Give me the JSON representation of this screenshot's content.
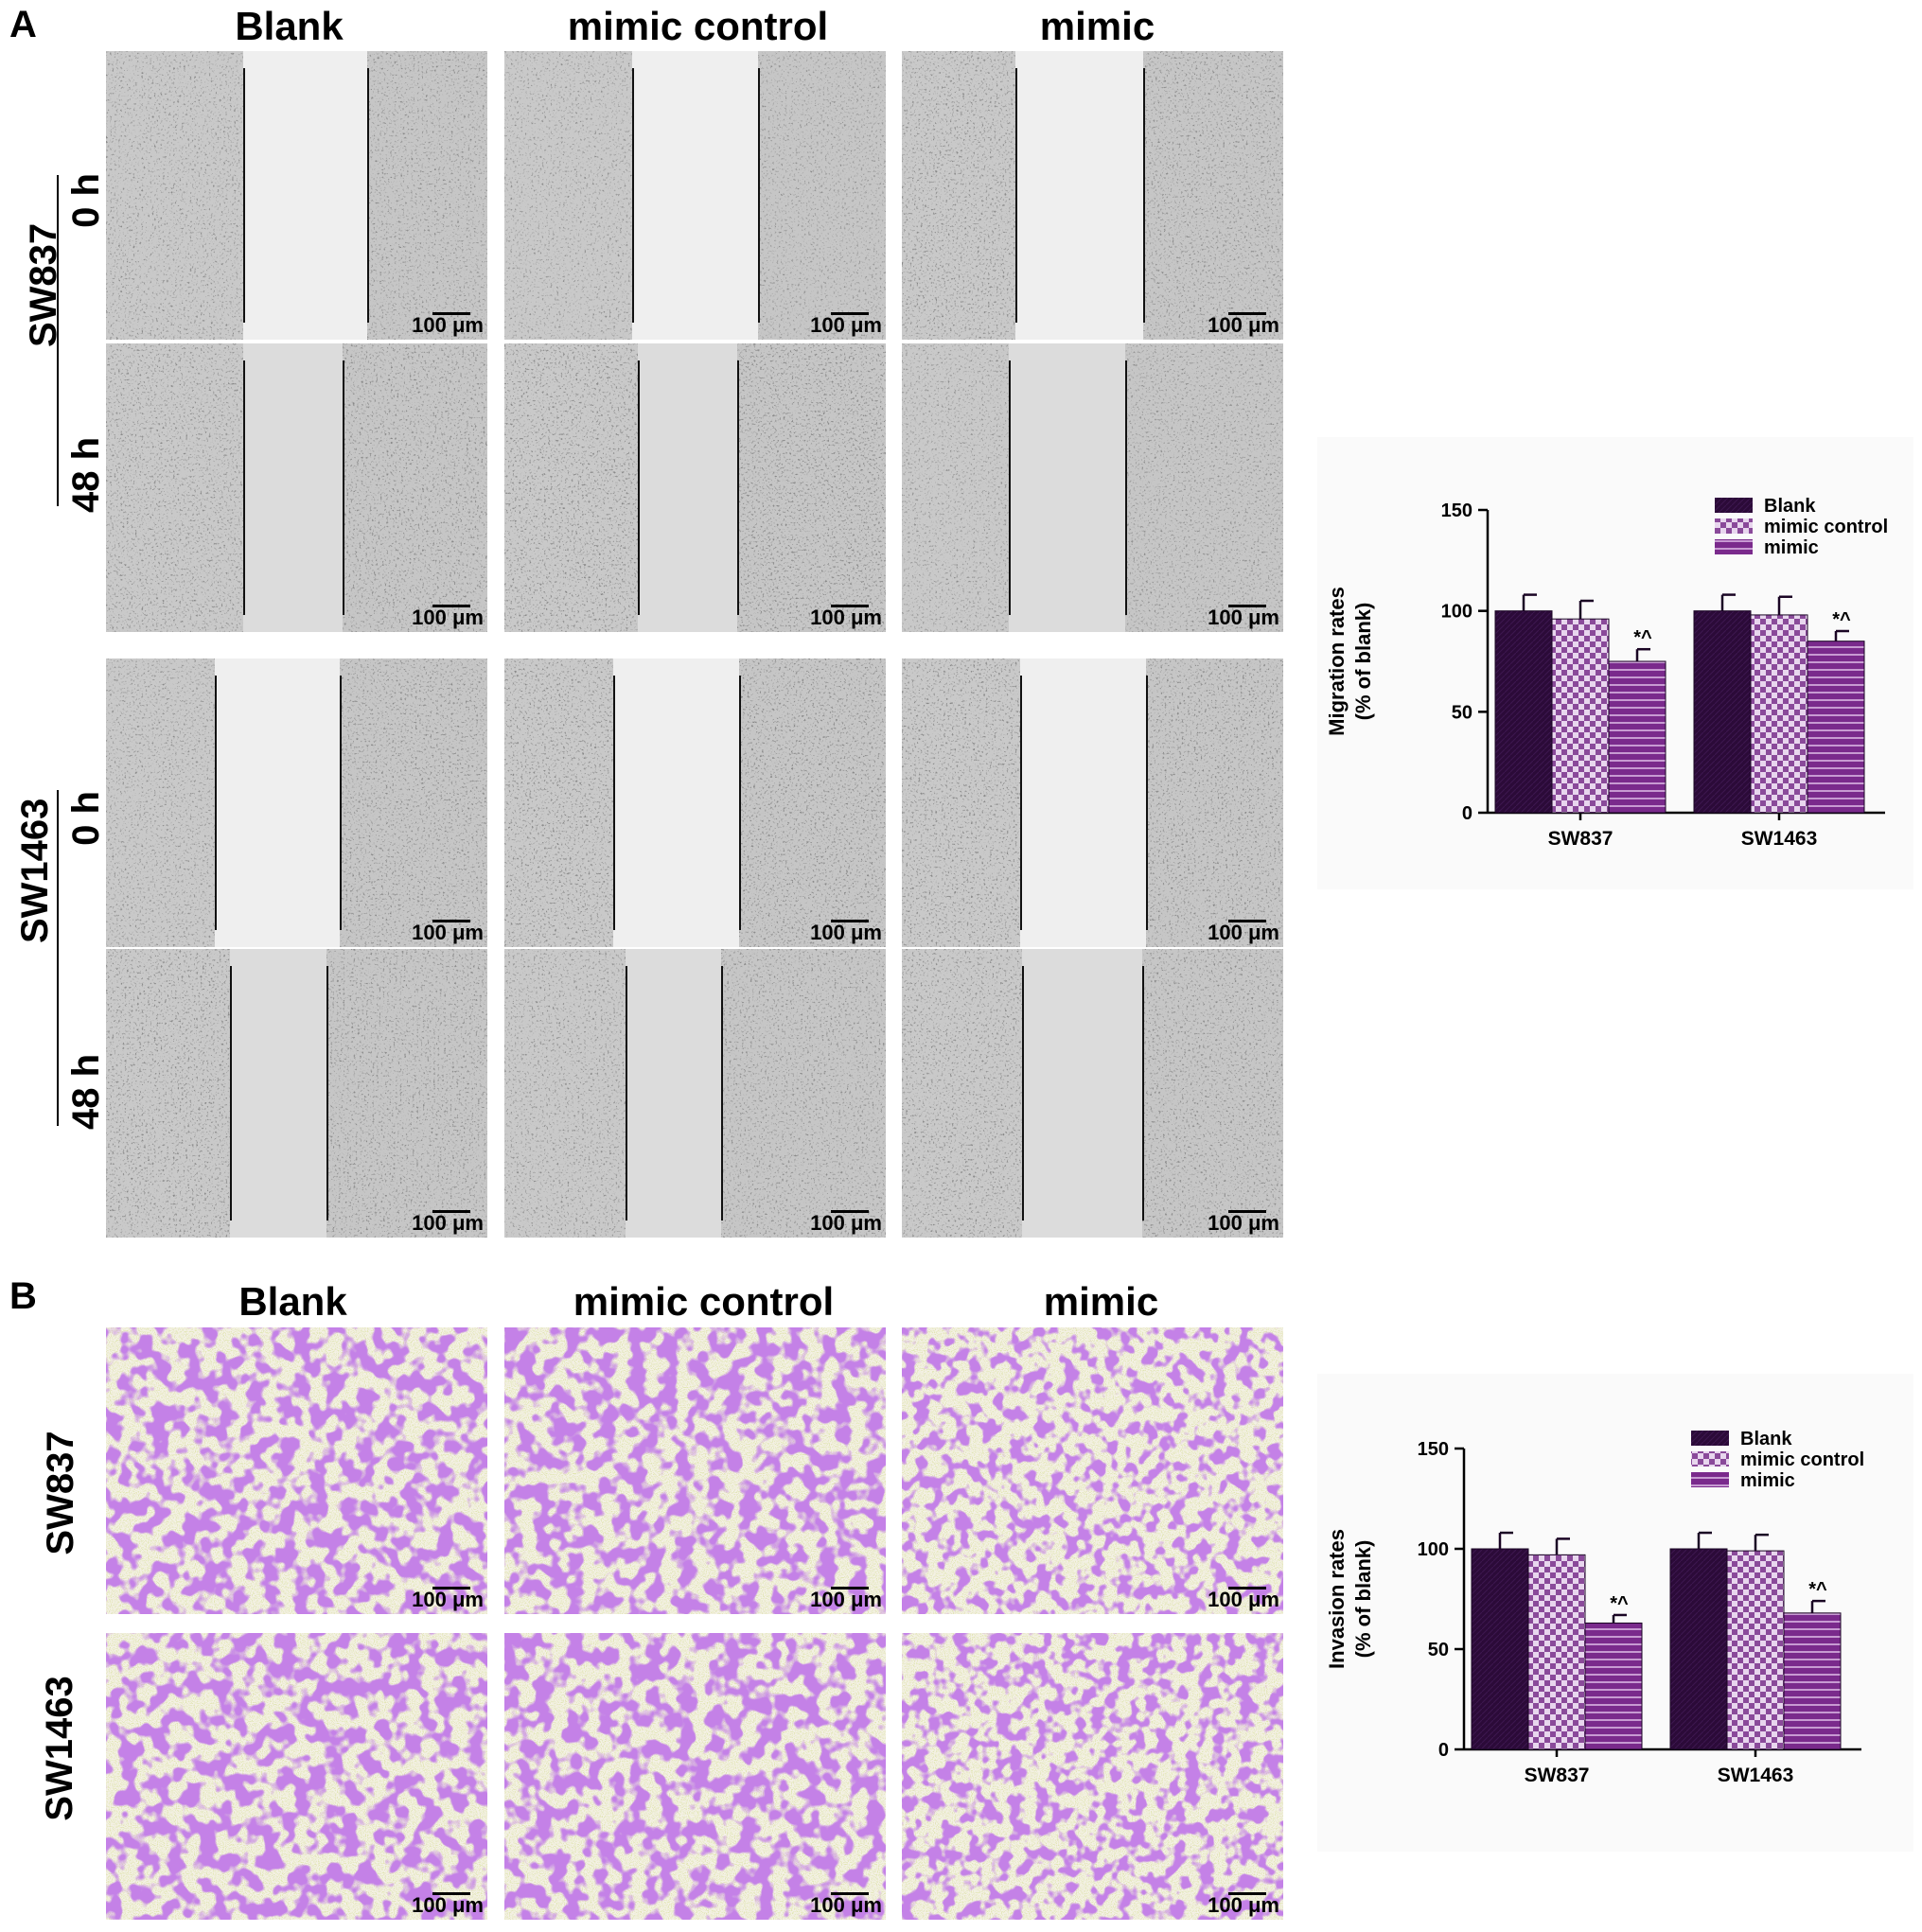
{
  "panel_a": {
    "letter": "A",
    "columns": [
      "Blank",
      "mimic control",
      "mimic"
    ],
    "cell_lines": [
      "SW837",
      "SW1463"
    ],
    "times": [
      "0 h",
      "48 h"
    ],
    "scale_label": "100 μm"
  },
  "panel_b": {
    "letter": "B",
    "columns": [
      "Blank",
      "mimic control",
      "mimic"
    ],
    "cell_lines": [
      "SW837",
      "SW1463"
    ],
    "scale_label": "100 μm"
  },
  "colors": {
    "blank": "#2b0a38",
    "mimic_control": "#8a4a9a",
    "mimic": "#7a2a8c",
    "background_chart": "#fafafa"
  },
  "chart_data": [
    {
      "type": "bar",
      "ylabel": "Migration rates\n(% of blank)",
      "ylabel_lines": [
        "Migration rates",
        "(% of blank)"
      ],
      "categories": [
        "SW837",
        "SW1463"
      ],
      "ylim": [
        0,
        150
      ],
      "yticks": [
        0,
        50,
        100,
        150
      ],
      "legend_position": "top-right",
      "series": [
        {
          "name": "Blank",
          "values": [
            100,
            100
          ],
          "errors": [
            8,
            8
          ],
          "pattern": "solid"
        },
        {
          "name": "mimic control",
          "values": [
            96,
            98
          ],
          "errors": [
            9,
            9
          ],
          "pattern": "checker"
        },
        {
          "name": "mimic",
          "values": [
            75,
            85
          ],
          "errors": [
            6,
            5
          ],
          "pattern": "stripes"
        }
      ],
      "annotations": [
        {
          "series": "mimic",
          "category": "SW837",
          "text": "*^"
        },
        {
          "series": "mimic",
          "category": "SW1463",
          "text": "*^"
        }
      ]
    },
    {
      "type": "bar",
      "ylabel": "Invasion rates\n(% of blank)",
      "ylabel_lines": [
        "Invasion rates",
        "(% of blank)"
      ],
      "categories": [
        "SW837",
        "SW1463"
      ],
      "ylim": [
        0,
        150
      ],
      "yticks": [
        0,
        50,
        100,
        150
      ],
      "legend_position": "top-right",
      "series": [
        {
          "name": "Blank",
          "values": [
            100,
            100
          ],
          "errors": [
            8,
            8
          ],
          "pattern": "solid"
        },
        {
          "name": "mimic control",
          "values": [
            97,
            99
          ],
          "errors": [
            8,
            8
          ],
          "pattern": "checker"
        },
        {
          "name": "mimic",
          "values": [
            63,
            68
          ],
          "errors": [
            4,
            6
          ],
          "pattern": "stripes"
        }
      ],
      "annotations": [
        {
          "series": "mimic",
          "category": "SW837",
          "text": "*^"
        },
        {
          "series": "mimic",
          "category": "SW1463",
          "text": "*^"
        }
      ]
    }
  ]
}
